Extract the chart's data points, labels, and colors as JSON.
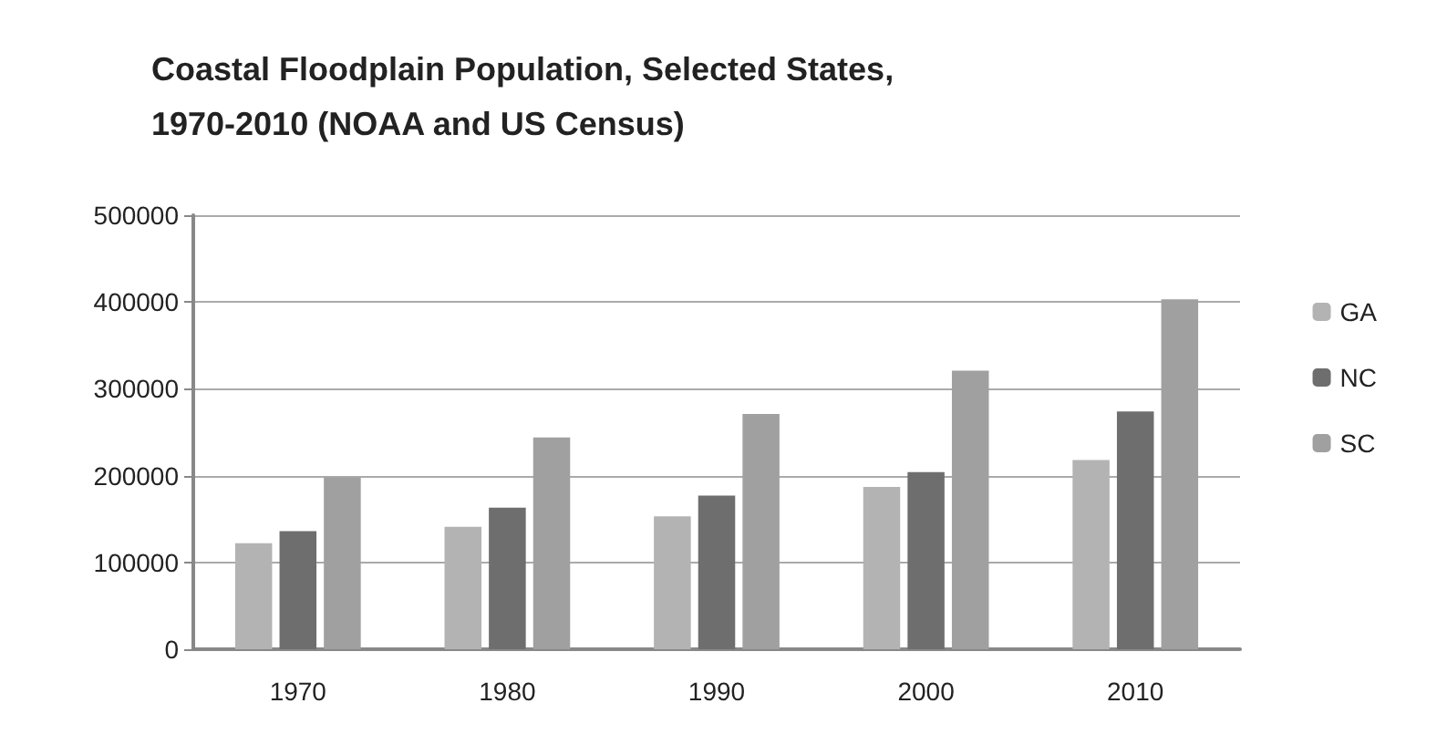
{
  "chart_data": {
    "type": "bar",
    "title": "Coastal Floodplain Population, Selected States, 1970-2010 (NOAA and US Census)",
    "categories": [
      "1970",
      "1980",
      "1990",
      "2000",
      "2010"
    ],
    "series": [
      {
        "name": "GA",
        "color": "#b3b3b3",
        "values": [
          122000,
          141000,
          153000,
          187000,
          218000
        ]
      },
      {
        "name": "NC",
        "color": "#6e6e6e",
        "values": [
          136000,
          163000,
          177000,
          204000,
          274000
        ]
      },
      {
        "name": "SC",
        "color": "#a0a0a0",
        "values": [
          198000,
          244000,
          271000,
          321000,
          403000
        ]
      }
    ],
    "ylim": [
      0,
      500000
    ],
    "yticks": [
      0,
      100000,
      200000,
      300000,
      400000,
      500000
    ],
    "grid": "y",
    "legend": "right"
  }
}
